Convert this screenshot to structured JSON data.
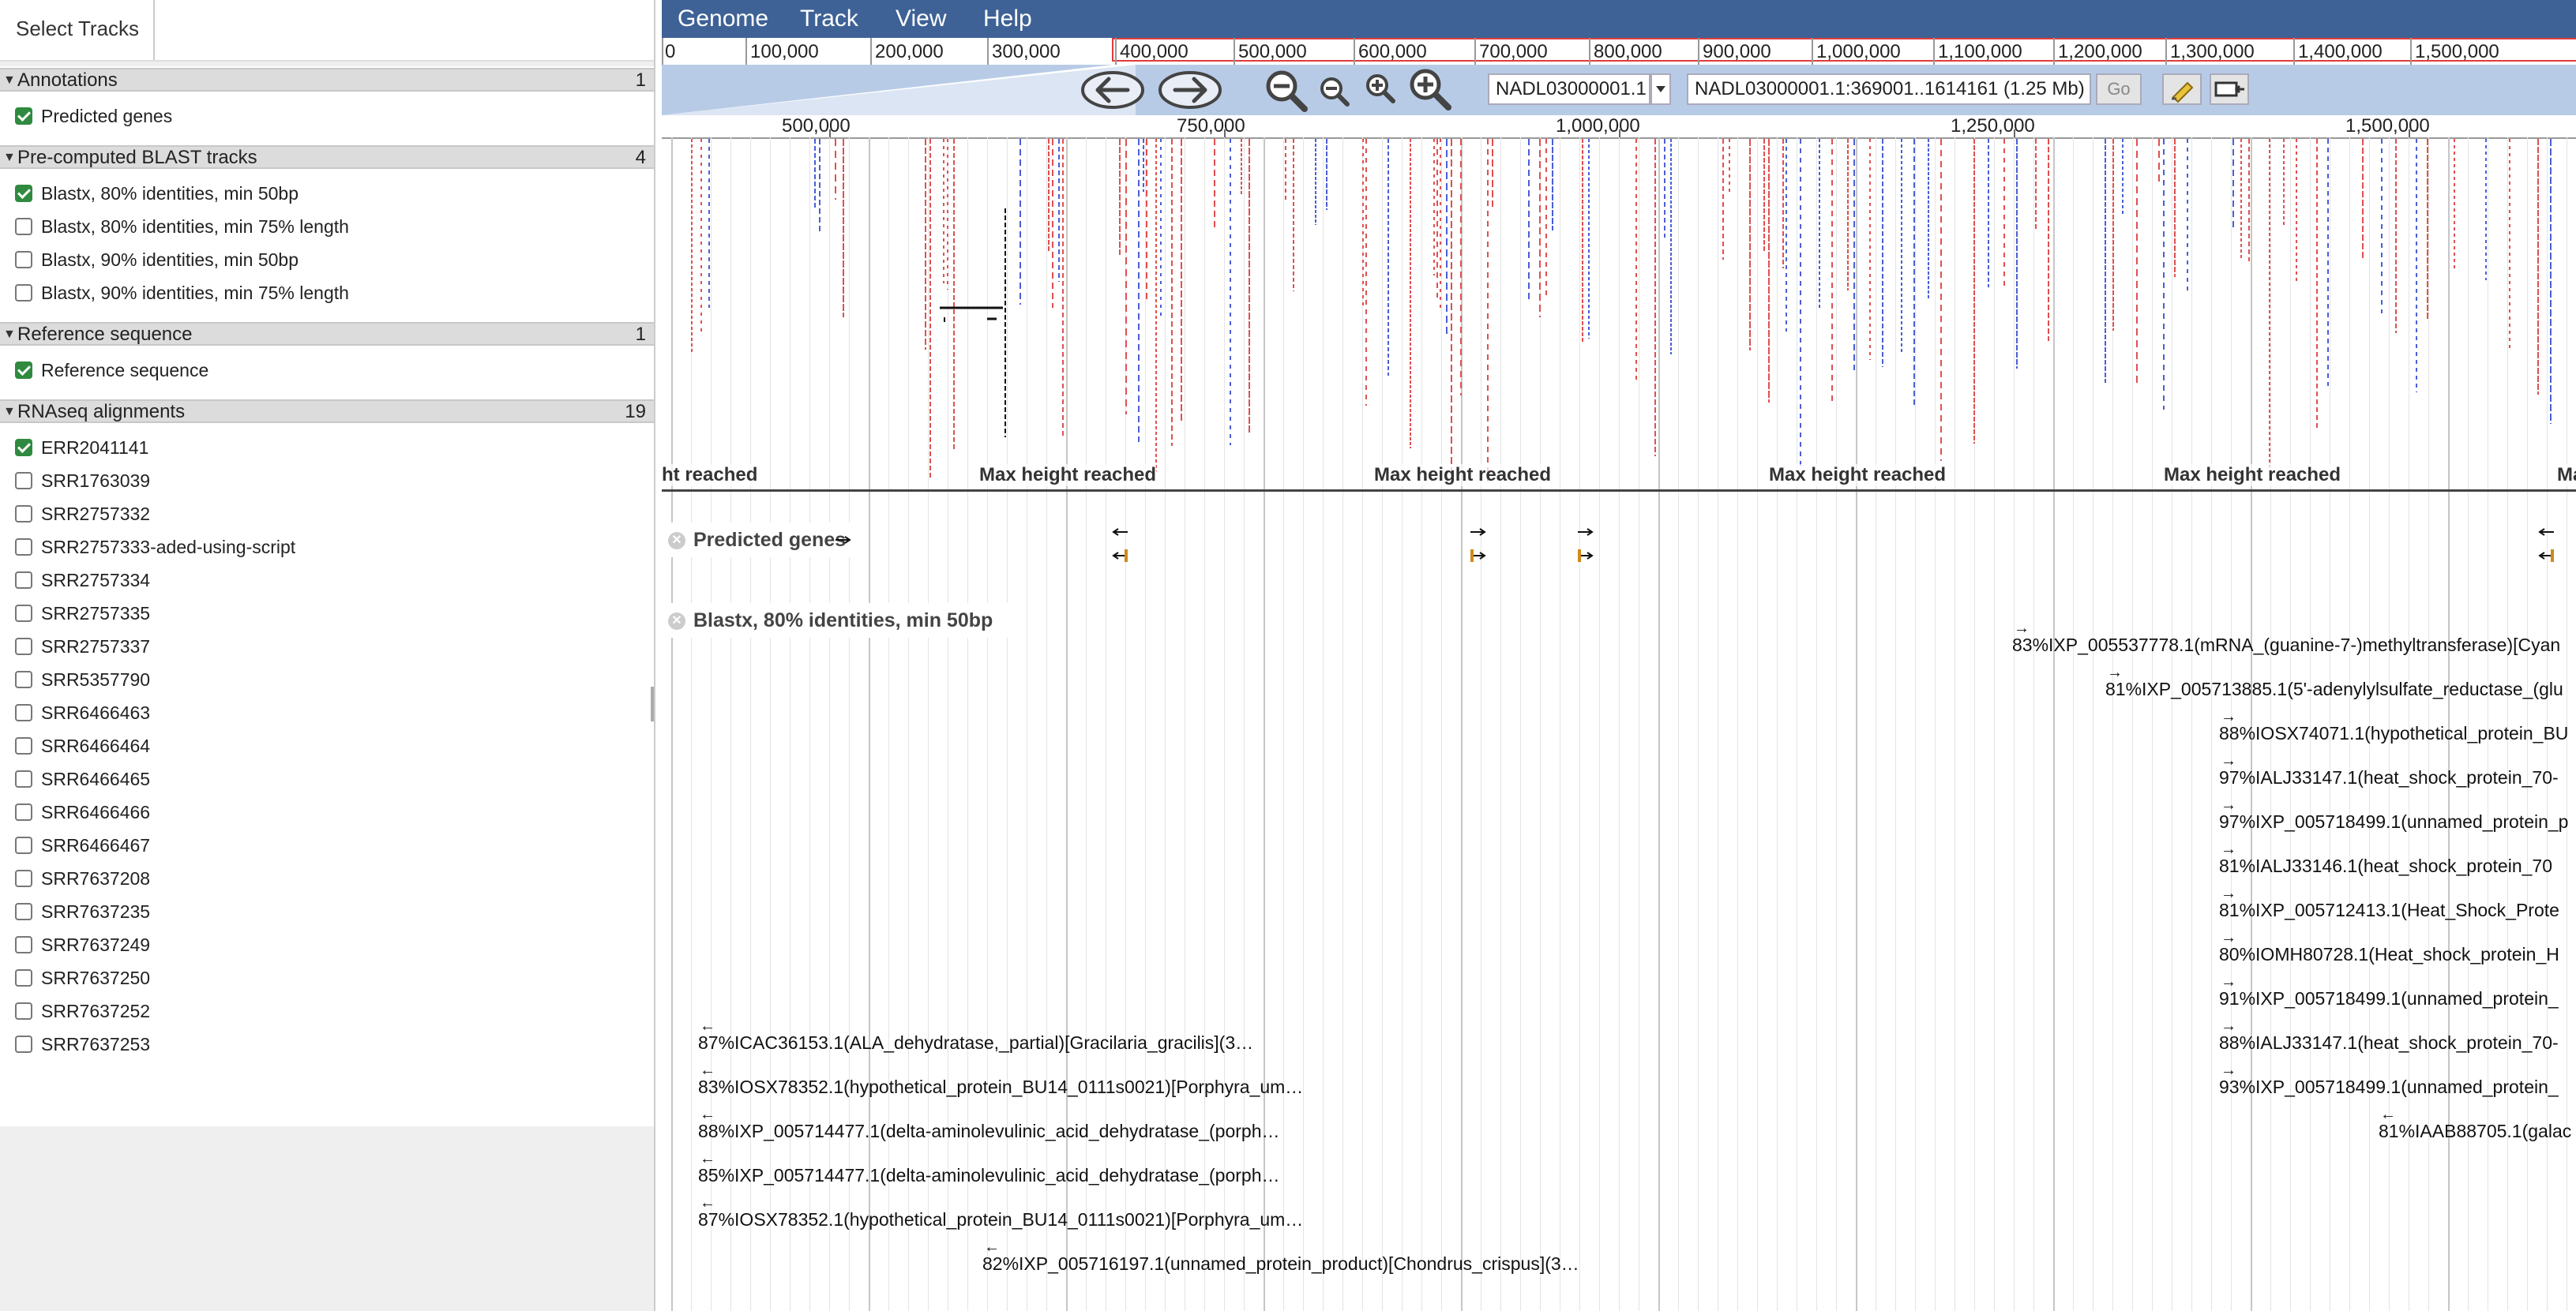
{
  "left_panel": {
    "tab_label": "Select Tracks",
    "categories": [
      {
        "title": "Annotations",
        "count": "1",
        "tracks": [
          {
            "label": "Predicted genes",
            "checked": true
          }
        ]
      },
      {
        "title": "Pre-computed BLAST tracks",
        "count": "4",
        "tracks": [
          {
            "label": "Blastx, 80% identities, min 50bp",
            "checked": true
          },
          {
            "label": "Blastx, 80% identities, min 75% length",
            "checked": false
          },
          {
            "label": "Blastx, 90% identities, min 50bp",
            "checked": false
          },
          {
            "label": "Blastx, 90% identities, min 75% length",
            "checked": false
          }
        ]
      },
      {
        "title": "Reference sequence",
        "count": "1",
        "tracks": [
          {
            "label": "Reference sequence",
            "checked": true
          }
        ]
      },
      {
        "title": "RNAseq alignments",
        "count": "19",
        "tracks": [
          {
            "label": "ERR2041141",
            "checked": true
          },
          {
            "label": "SRR1763039",
            "checked": false
          },
          {
            "label": "SRR2757332",
            "checked": false
          },
          {
            "label": "SRR2757333-aded-using-script",
            "checked": false
          },
          {
            "label": "SRR2757334",
            "checked": false
          },
          {
            "label": "SRR2757335",
            "checked": false
          },
          {
            "label": "SRR2757337",
            "checked": false
          },
          {
            "label": "SRR5357790",
            "checked": false
          },
          {
            "label": "SRR6466463",
            "checked": false
          },
          {
            "label": "SRR6466464",
            "checked": false
          },
          {
            "label": "SRR6466465",
            "checked": false
          },
          {
            "label": "SRR6466466",
            "checked": false
          },
          {
            "label": "SRR6466467",
            "checked": false
          },
          {
            "label": "SRR7637208",
            "checked": false
          },
          {
            "label": "SRR7637235",
            "checked": false
          },
          {
            "label": "SRR7637249",
            "checked": false
          },
          {
            "label": "SRR7637250",
            "checked": false
          },
          {
            "label": "SRR7637252",
            "checked": false
          },
          {
            "label": "SRR7637253",
            "checked": false
          }
        ]
      }
    ]
  },
  "menu": {
    "genome": "Genome",
    "track": "Track",
    "view": "View",
    "help": "Help"
  },
  "overview_ticks": [
    "0",
    "100,000",
    "200,000",
    "300,000",
    "400,000",
    "500,000",
    "600,000",
    "700,000",
    "800,000",
    "900,000",
    "1,000,000",
    "1,100,000",
    "1,200,000",
    "1,300,000",
    "1,400,000",
    "1,500,000"
  ],
  "nav": {
    "ref_select": "NADL03000001.1",
    "location": "NADL03000001.1:369001..1614161 (1.25 Mb)",
    "go_label": "Go"
  },
  "ruler_ticks": [
    "500,000",
    "750,000",
    "1,000,000",
    "1,250,000",
    "1,500,000"
  ],
  "rnaseq": {
    "max_height_label": "Max height reached",
    "max_height_partial_left": "ht reached",
    "max_height_partial_right": "Ma"
  },
  "tracks": {
    "predicted_genes_label": "Predicted genes",
    "blastx_label": "Blastx, 80% identities, min 50bp"
  },
  "features": [
    "83%IXP_005537778.1(mRNA_(guanine-7-)methyltransferase)[Cyan",
    "81%IXP_005713885.1(5'-adenylylsulfate_reductase_(glu",
    "88%IOSX74071.1(hypothetical_protein_BU",
    "97%IALJ33147.1(heat_shock_protein_70-",
    "97%IXP_005718499.1(unnamed_protein_p",
    "81%IALJ33146.1(heat_shock_protein_70",
    "81%IXP_005712413.1(Heat_Shock_Prote",
    "80%IOMH80728.1(Heat_shock_protein_H",
    "91%IXP_005718499.1(unnamed_protein_",
    "88%IALJ33147.1(heat_shock_protein_70-",
    "93%IXP_005718499.1(unnamed_protein_",
    "81%IAAB88705.1(galac",
    "87%ICAC36153.1(ALA_dehydratase,_partial)[Gracilaria_gracilis](3…",
    "83%IOSX78352.1(hypothetical_protein_BU14_0111s0021)[Porphyra_um…",
    "88%IXP_005714477.1(delta-aminolevulinic_acid_dehydratase_(porph…",
    "85%IXP_005714477.1(delta-aminolevulinic_acid_dehydratase_(porph…",
    "87%IOSX78352.1(hypothetical_protein_BU14_0111s0021)[Porphyra_um…",
    "82%IXP_005716197.1(unnamed_protein_product)[Chondrus_crispus](3…"
  ],
  "colors": {
    "menubar": "#3e6296",
    "navbar": "#b8cbe6",
    "highlight": "#e03c3c",
    "read_forward": "#e05050",
    "read_reverse": "#4a5fd6"
  }
}
